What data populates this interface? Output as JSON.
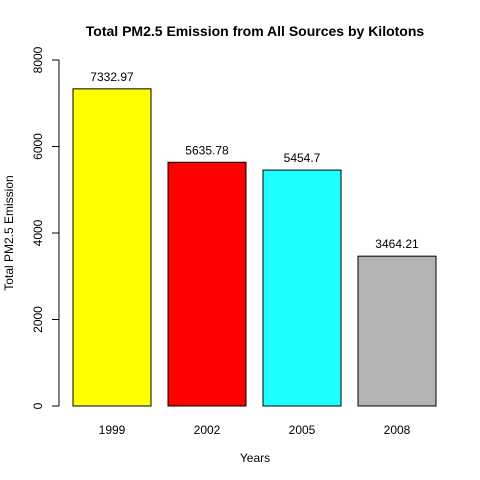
{
  "chart_data": {
    "type": "bar",
    "title": "Total PM2.5 Emission from All Sources by Kilotons",
    "xlabel": "Years",
    "ylabel": "Total PM2.5 Emission",
    "categories": [
      "1999",
      "2002",
      "2005",
      "2008"
    ],
    "values": [
      7332.97,
      5635.78,
      5454.7,
      3464.21
    ],
    "data_labels": [
      "7332.97",
      "5635.78",
      "5454.7",
      "3464.21"
    ],
    "colors": [
      "#ffff00",
      "#ff0000",
      "#1effff",
      "#b3b3b3"
    ],
    "ylim": [
      0,
      8000
    ],
    "yticks": [
      0,
      2000,
      4000,
      6000,
      8000
    ],
    "ytick_labels": [
      "0",
      "2000",
      "4000",
      "6000",
      "8000"
    ],
    "grid": false,
    "legend": "none"
  }
}
